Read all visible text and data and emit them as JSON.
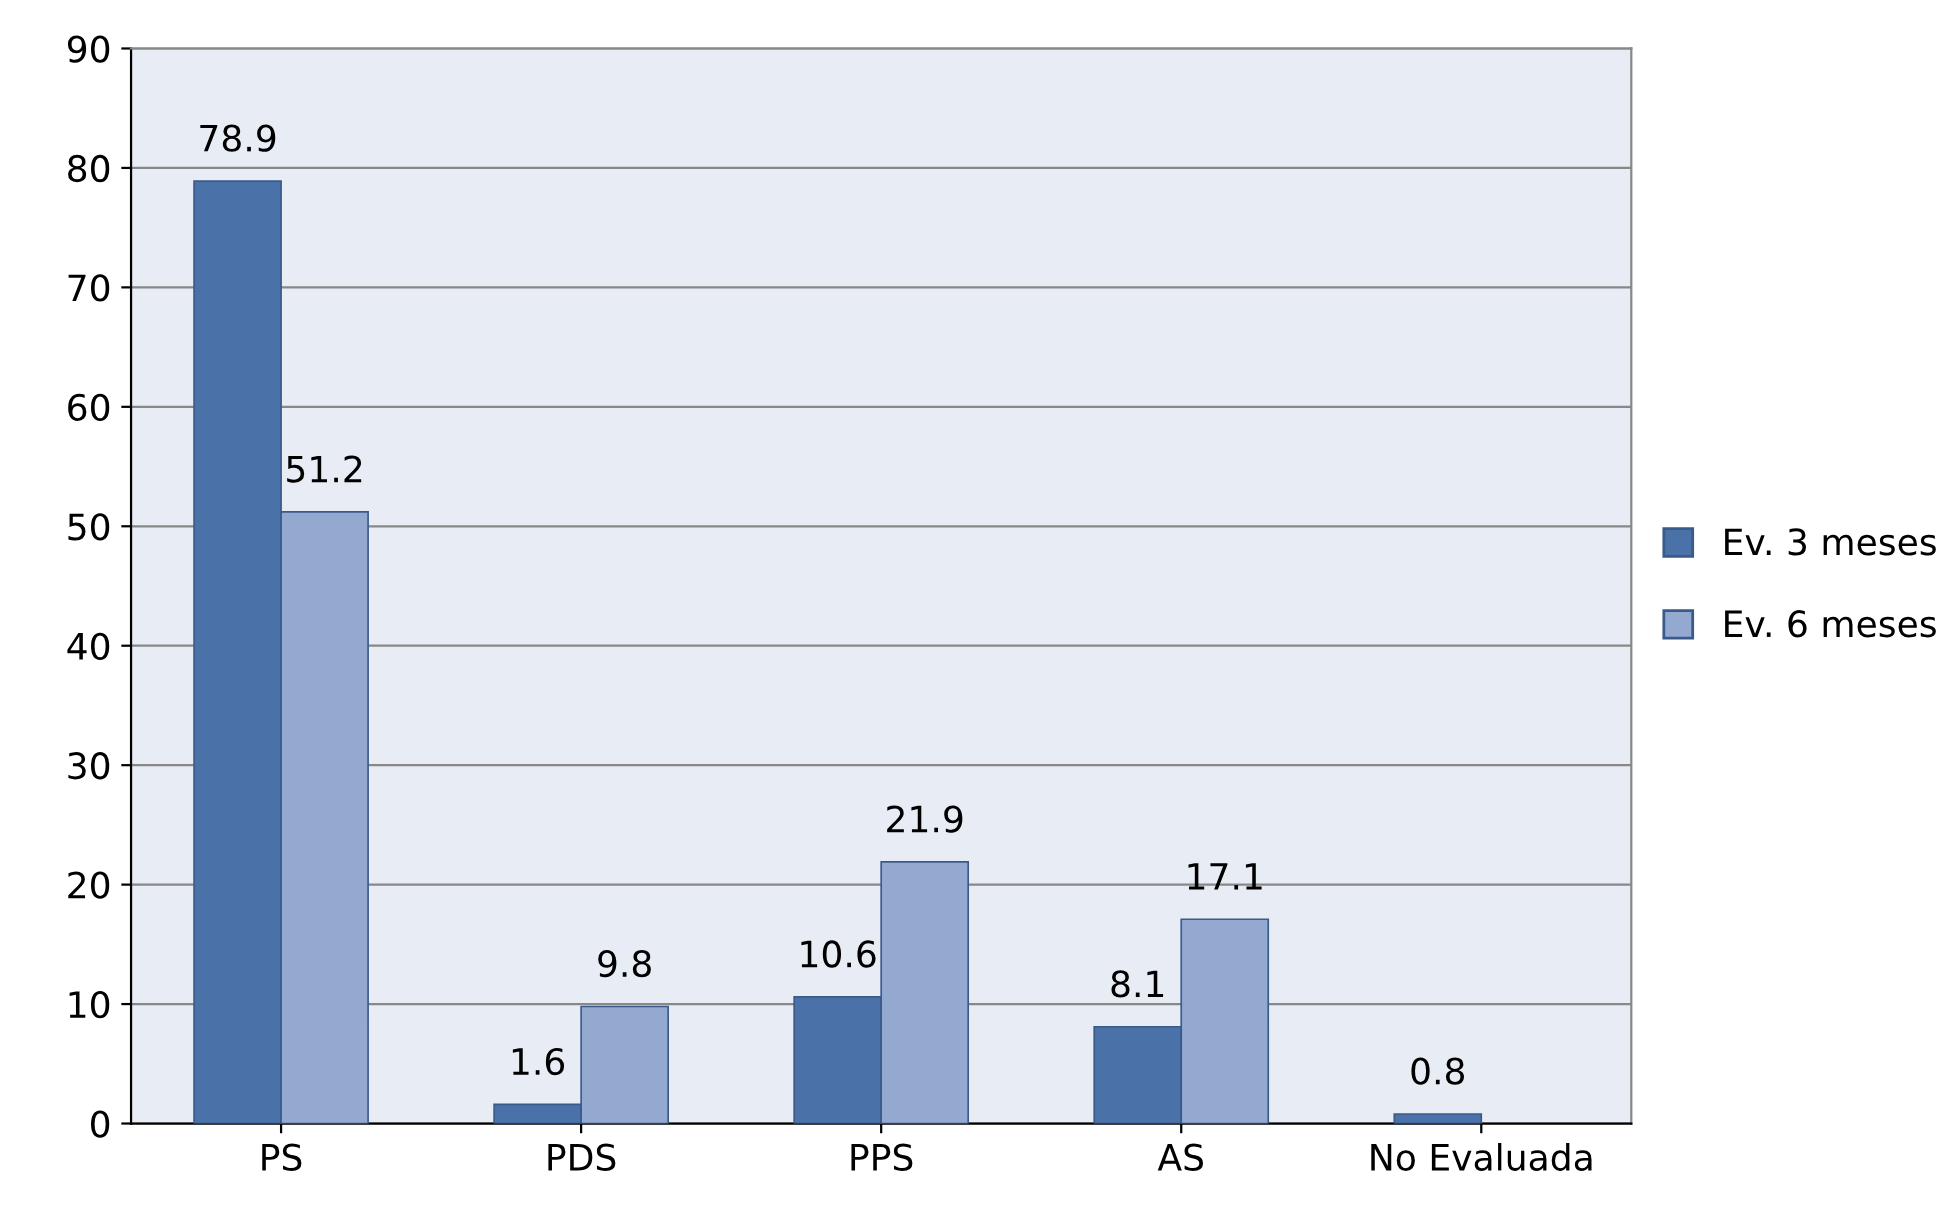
{
  "chart_data": {
    "type": "bar",
    "categories": [
      "PS",
      "PDS",
      "PPS",
      "AS",
      "No Evaluada"
    ],
    "series": [
      {
        "name": "Ev. 3 meses",
        "color": "#4a71a8",
        "values": [
          78.9,
          1.6,
          10.6,
          8.1,
          0.8
        ]
      },
      {
        "name": "Ev. 6 meses",
        "color": "#94a9d0",
        "values": [
          51.2,
          9.8,
          21.9,
          17.1,
          null
        ]
      }
    ],
    "ylim": [
      0,
      90
    ],
    "yticks": [
      0,
      10,
      20,
      30,
      40,
      50,
      60,
      70,
      80,
      90
    ],
    "grid": "y",
    "legend": "right",
    "data_labels": true
  }
}
